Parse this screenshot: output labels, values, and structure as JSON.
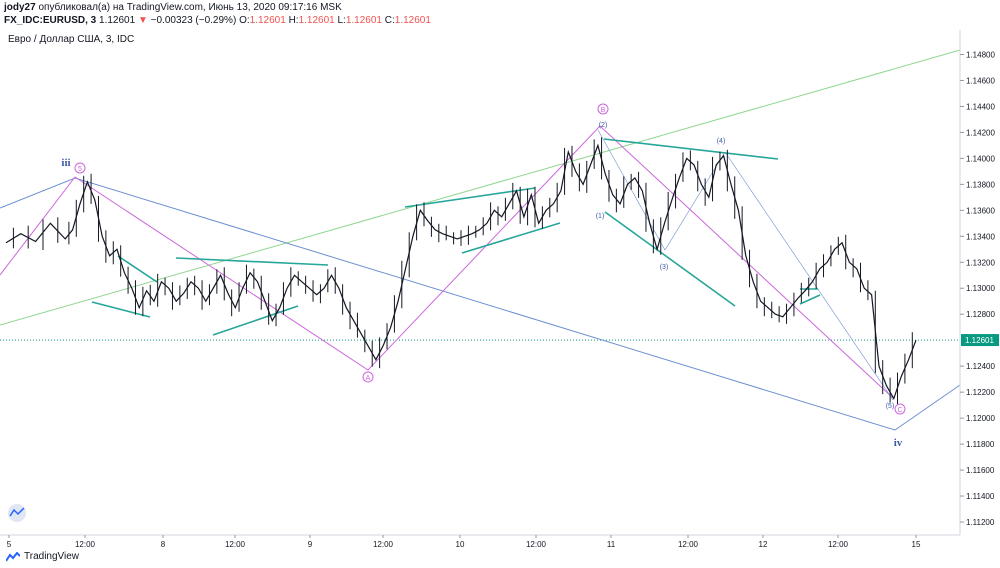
{
  "header": {
    "author": "jody27",
    "published_text": "опубликовал(а) на TradingView.com, Июнь 13, 2020 09:17:16 MSK",
    "symbol": "FX_IDC:EURUSD, 3",
    "last": "1.12601",
    "change": "−0.00323 (−0.29%)",
    "open_label": "O:",
    "open": "1.12601",
    "high_label": "H:",
    "high": "1.12601",
    "low_label": "L:",
    "low": "1.12601",
    "close_label": "C:",
    "close": "1.12601"
  },
  "chart_title": "Евро / Доллар США, 3, IDC",
  "footer": {
    "brand": "TradingView"
  },
  "colors": {
    "candle": "#131722",
    "price_line": "#089981",
    "price_label_bg": "#089981",
    "trendline_green": "#26a69a",
    "wave_violet": "#cc66dd",
    "channel_blue": "#6a8fd0",
    "long_green": "#8fd68f",
    "wave_label_blue": "#3d5aa8",
    "axis_text": "#131722",
    "grid_border": "#d1d4dc"
  },
  "chart_data": {
    "type": "line",
    "title": "Евро / Доллар США, 3, IDC",
    "y_axis": {
      "ticks": [
        "1.14800",
        "1.14600",
        "1.14400",
        "1.14200",
        "1.14000",
        "1.13800",
        "1.13600",
        "1.13400",
        "1.13200",
        "1.13000",
        "1.12800",
        "1.12601",
        "1.12400",
        "1.12200",
        "1.12000",
        "1.11800",
        "1.11600",
        "1.11400",
        "1.11200"
      ],
      "range": [
        1.111,
        1.1495
      ],
      "current_price": 1.12601,
      "current_price_label": "1.12601"
    },
    "x_axis": {
      "ticks": [
        "5",
        "12:00",
        "8",
        "12:00",
        "9",
        "12:00",
        "10",
        "12:00",
        "11",
        "12:00",
        "12",
        "12:00",
        "15"
      ]
    },
    "series": [
      {
        "values": [
          [
            0,
            1.1335
          ],
          [
            2,
            1.1342
          ],
          [
            4,
            1.1336
          ],
          [
            6,
            1.135
          ],
          [
            8,
            1.1338
          ],
          [
            9,
            1.1345
          ],
          [
            10,
            1.1365
          ],
          [
            11,
            1.1382
          ],
          [
            12,
            1.1368
          ],
          [
            13,
            1.134
          ],
          [
            14,
            1.1325
          ],
          [
            15,
            1.133
          ],
          [
            16,
            1.1312
          ],
          [
            17,
            1.13
          ],
          [
            18,
            1.1285
          ],
          [
            19,
            1.1298
          ],
          [
            20,
            1.129
          ],
          [
            21,
            1.1305
          ],
          [
            22,
            1.13
          ],
          [
            23,
            1.129
          ],
          [
            24,
            1.1296
          ],
          [
            25,
            1.1305
          ],
          [
            26,
            1.13
          ],
          [
            27,
            1.129
          ],
          [
            28,
            1.13
          ],
          [
            29,
            1.131
          ],
          [
            30,
            1.1296
          ],
          [
            31,
            1.1285
          ],
          [
            32,
            1.13
          ],
          [
            33,
            1.1312
          ],
          [
            34,
            1.1305
          ],
          [
            35,
            1.129
          ],
          [
            36,
            1.1275
          ],
          [
            37,
            1.1285
          ],
          [
            38,
            1.13
          ],
          [
            39,
            1.131
          ],
          [
            40,
            1.1305
          ],
          [
            41,
            1.13
          ],
          [
            42,
            1.1295
          ],
          [
            43,
            1.13
          ],
          [
            44,
            1.131
          ],
          [
            45,
            1.13
          ],
          [
            46,
            1.1285
          ],
          [
            47,
            1.1275
          ],
          [
            48,
            1.1265
          ],
          [
            49,
            1.1255
          ],
          [
            50,
            1.1245
          ],
          [
            51,
            1.1256
          ],
          [
            52,
            1.127
          ],
          [
            53,
            1.129
          ],
          [
            54,
            1.1315
          ],
          [
            55,
            1.134
          ],
          [
            56,
            1.136
          ],
          [
            57,
            1.1352
          ],
          [
            58,
            1.1345
          ],
          [
            59,
            1.1342
          ],
          [
            60,
            1.134
          ],
          [
            61,
            1.1338
          ],
          [
            62,
            1.134
          ],
          [
            63,
            1.1342
          ],
          [
            64,
            1.1345
          ],
          [
            65,
            1.135
          ],
          [
            66,
            1.136
          ],
          [
            67,
            1.1355
          ],
          [
            68,
            1.1365
          ],
          [
            69,
            1.1375
          ],
          [
            70,
            1.1355
          ],
          [
            71,
            1.1372
          ],
          [
            72,
            1.135
          ],
          [
            73,
            1.136
          ],
          [
            74,
            1.1365
          ],
          [
            75,
            1.1375
          ],
          [
            76,
            1.1405
          ],
          [
            77,
            1.139
          ],
          [
            78,
            1.138
          ],
          [
            79,
            1.1395
          ],
          [
            80,
            1.141
          ],
          [
            81,
            1.1388
          ],
          [
            82,
            1.1372
          ],
          [
            83,
            1.1365
          ],
          [
            84,
            1.138
          ],
          [
            85,
            1.1385
          ],
          [
            86,
            1.1375
          ],
          [
            87,
            1.135
          ],
          [
            88,
            1.133
          ],
          [
            89,
            1.135
          ],
          [
            90,
            1.1368
          ],
          [
            91,
            1.1385
          ],
          [
            92,
            1.14
          ],
          [
            93,
            1.1395
          ],
          [
            94,
            1.138
          ],
          [
            95,
            1.137
          ],
          [
            96,
            1.1395
          ],
          [
            97,
            1.1402
          ],
          [
            98,
            1.138
          ],
          [
            99,
            1.136
          ],
          [
            100,
            1.1325
          ],
          [
            101,
            1.1305
          ],
          [
            102,
            1.129
          ],
          [
            103,
            1.1285
          ],
          [
            104,
            1.128
          ],
          [
            105,
            1.1278
          ],
          [
            106,
            1.1285
          ],
          [
            107,
            1.1292
          ],
          [
            108,
            1.1298
          ],
          [
            109,
            1.1305
          ],
          [
            110,
            1.1315
          ],
          [
            111,
            1.132
          ],
          [
            112,
            1.133
          ],
          [
            113,
            1.1335
          ],
          [
            114,
            1.132
          ],
          [
            115,
            1.1315
          ],
          [
            116,
            1.13
          ],
          [
            117,
            1.1295
          ],
          [
            118,
            1.124
          ],
          [
            119,
            1.1225
          ],
          [
            120,
            1.1215
          ],
          [
            121,
            1.1232
          ],
          [
            122,
            1.1245
          ],
          [
            123,
            1.126
          ]
        ]
      }
    ],
    "annotations": {
      "wave_labels": [
        "iii",
        "5",
        "A",
        "B",
        "(2)",
        "(1)",
        "(3)",
        "(4)",
        "(5)",
        "C",
        "iv"
      ]
    }
  }
}
